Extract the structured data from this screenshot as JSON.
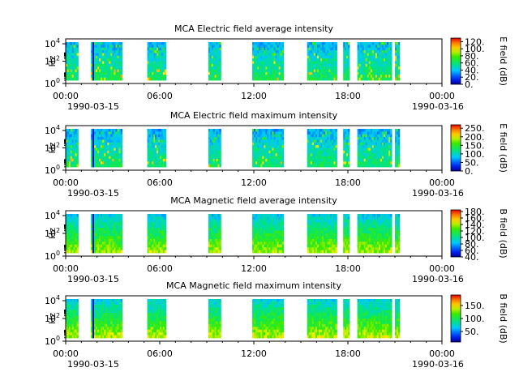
{
  "chart_data": [
    {
      "type": "heatmap",
      "title": "MCA  Electric field average intensity",
      "ylabel": "Hz",
      "yticks": [
        "10^4",
        "10^2",
        "10^0"
      ],
      "colorbar_label": "E field (dB)",
      "colorbar_ticks": [
        "120.",
        "100.",
        "80.",
        "60.",
        "40.",
        "20.",
        "0."
      ],
      "crange": [
        0,
        130
      ],
      "xticks": [
        "00:00",
        "06:00",
        "12:00",
        "18:00",
        "00:00"
      ],
      "xdate_left": "1990-03-15",
      "xdate_right": "1990-03-16",
      "xrange_hours": [
        0,
        24
      ],
      "data_intervals_hours": [
        [
          0,
          0.8
        ],
        [
          1.6,
          3.6
        ],
        [
          5.2,
          6.4
        ],
        [
          9.1,
          9.9
        ],
        [
          11.9,
          13.9
        ],
        [
          15.4,
          17.3
        ],
        [
          17.7,
          18.1
        ],
        [
          18.6,
          20.8
        ],
        [
          21.0,
          21.3
        ]
      ],
      "typical_db": 50
    },
    {
      "type": "heatmap",
      "title": "MCA  Electric field maximum intensity",
      "ylabel": "Hz",
      "yticks": [
        "10^4",
        "10^2",
        "10^0"
      ],
      "colorbar_label": "E field (dB)",
      "colorbar_ticks": [
        "250.",
        "200.",
        "150.",
        "100.",
        "50.",
        "0."
      ],
      "crange": [
        0,
        270
      ],
      "xticks": [
        "00:00",
        "06:00",
        "12:00",
        "18:00",
        "00:00"
      ],
      "xdate_left": "1990-03-15",
      "xdate_right": "1990-03-16",
      "xrange_hours": [
        0,
        24
      ],
      "data_intervals_hours": [
        [
          0,
          0.8
        ],
        [
          1.6,
          3.6
        ],
        [
          5.2,
          6.4
        ],
        [
          9.1,
          9.9
        ],
        [
          11.9,
          13.9
        ],
        [
          15.4,
          17.3
        ],
        [
          17.7,
          18.1
        ],
        [
          18.6,
          20.8
        ],
        [
          21.0,
          21.3
        ]
      ],
      "typical_db": 100
    },
    {
      "type": "heatmap",
      "title": "MCA  Magnetic field average intensity",
      "ylabel": "Hz",
      "yticks": [
        "10^4",
        "10^2",
        "10^0"
      ],
      "colorbar_label": "B field (dB)",
      "colorbar_ticks": [
        "180.",
        "160.",
        "140.",
        "120.",
        "100.",
        "80.",
        "60.",
        "40."
      ],
      "crange": [
        40,
        185
      ],
      "xticks": [
        "00:00",
        "06:00",
        "12:00",
        "18:00",
        "00:00"
      ],
      "xdate_left": "1990-03-15",
      "xdate_right": "1990-03-16",
      "xrange_hours": [
        0,
        24
      ],
      "data_intervals_hours": [
        [
          0,
          0.8
        ],
        [
          1.6,
          3.6
        ],
        [
          5.2,
          6.4
        ],
        [
          9.1,
          9.9
        ],
        [
          11.9,
          13.9
        ],
        [
          15.4,
          17.3
        ],
        [
          17.7,
          18.1
        ],
        [
          18.6,
          20.8
        ],
        [
          21.0,
          21.3
        ]
      ],
      "typical_db": 110
    },
    {
      "type": "heatmap",
      "title": "MCA  Magnetic field maximum intensity",
      "ylabel": "Hz",
      "yticks": [
        "10^4",
        "10^2",
        "10^0"
      ],
      "colorbar_label": "B field (dB)",
      "colorbar_ticks": [
        "150.",
        "100.",
        "50."
      ],
      "crange": [
        10,
        190
      ],
      "xticks": [
        "00:00",
        "06:00",
        "12:00",
        "18:00",
        "00:00"
      ],
      "xdate_left": "1990-03-15",
      "xdate_right": "1990-03-16",
      "xrange_hours": [
        0,
        24
      ],
      "data_intervals_hours": [
        [
          0,
          0.8
        ],
        [
          1.6,
          3.6
        ],
        [
          5.2,
          6.4
        ],
        [
          9.1,
          9.9
        ],
        [
          11.9,
          13.9
        ],
        [
          15.4,
          17.3
        ],
        [
          17.7,
          18.1
        ],
        [
          18.6,
          20.8
        ],
        [
          21.0,
          21.3
        ]
      ],
      "typical_db": 100
    }
  ]
}
